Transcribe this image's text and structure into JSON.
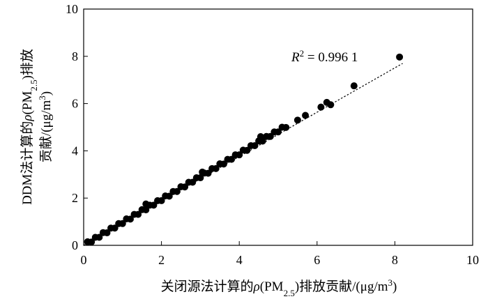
{
  "chart_data": {
    "type": "scatter",
    "x_label": [
      "关闭源法计算的",
      "ρ",
      "(PM",
      "2.5",
      ")排放贡献/(μg/m",
      "3",
      ")"
    ],
    "y_label": [
      [
        "DDM法计算的",
        "ρ",
        "(PM",
        "2.5",
        ")排放"
      ],
      [
        "贡献/(μg/m",
        "3",
        ")"
      ]
    ],
    "annotation": [
      "R",
      "2",
      " = 0.996 1"
    ],
    "x": [
      0.1,
      0.2,
      0.3,
      0.4,
      0.5,
      0.6,
      0.7,
      0.8,
      0.9,
      1.0,
      1.1,
      1.2,
      1.3,
      1.4,
      1.5,
      1.6,
      1.7,
      1.8,
      1.9,
      2.0,
      2.1,
      2.2,
      2.3,
      2.4,
      2.5,
      2.6,
      2.7,
      2.8,
      2.9,
      3.0,
      3.1,
      3.2,
      3.3,
      3.4,
      3.5,
      3.6,
      3.7,
      3.8,
      3.9,
      4.0,
      4.1,
      4.2,
      4.3,
      4.4,
      4.5,
      4.6,
      4.7,
      4.8,
      4.9,
      5.0,
      5.1,
      5.2,
      5.5,
      5.7,
      6.1,
      6.25,
      6.35,
      6.95,
      8.12,
      1.6,
      3.05,
      4.55
    ],
    "values": [
      0.15,
      0.14,
      0.34,
      0.34,
      0.54,
      0.53,
      0.73,
      0.73,
      0.92,
      0.92,
      1.12,
      1.11,
      1.31,
      1.31,
      1.51,
      1.5,
      1.7,
      1.7,
      1.89,
      1.89,
      2.09,
      2.08,
      2.28,
      2.28,
      2.48,
      2.47,
      2.67,
      2.67,
      2.86,
      2.86,
      3.06,
      3.05,
      3.25,
      3.25,
      3.45,
      3.44,
      3.64,
      3.64,
      3.83,
      3.83,
      4.03,
      4.02,
      4.22,
      4.22,
      4.42,
      4.41,
      4.61,
      4.61,
      4.8,
      4.8,
      5.0,
      4.99,
      5.3,
      5.5,
      5.85,
      6.05,
      5.95,
      6.75,
      7.97,
      1.75,
      3.1,
      4.6
    ],
    "color": "#000000",
    "trendline": {
      "x": [
        0,
        8.2
      ],
      "y": [
        0,
        7.7
      ]
    },
    "xlim": [
      0,
      10
    ],
    "ylim": [
      0,
      10
    ],
    "xticks": [
      0,
      2,
      4,
      6,
      8,
      10
    ],
    "yticks": [
      0,
      2,
      4,
      6,
      8,
      10
    ]
  }
}
